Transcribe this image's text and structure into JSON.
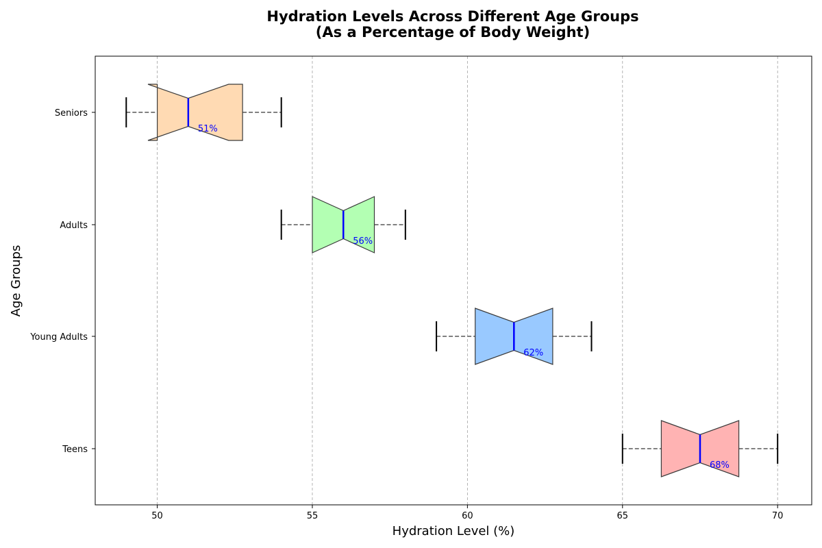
{
  "chart_data": {
    "type": "box",
    "orientation": "horizontal",
    "notched": true,
    "title_lines": [
      "Hydration Levels Across Different Age Groups",
      "(As a Percentage of Body Weight)"
    ],
    "xlabel": "Hydration Level (%)",
    "ylabel": "Age Groups",
    "xlim": [
      48,
      71.1
    ],
    "xticks": [
      50,
      55,
      60,
      65,
      70
    ],
    "xtick_labels": [
      "50",
      "55",
      "60",
      "65",
      "70"
    ],
    "grid": "x-dashed",
    "categories": [
      "Teens",
      "Young Adults",
      "Adults",
      "Seniors"
    ],
    "boxes": [
      {
        "name": "Teens",
        "min": 65,
        "q1": 66.25,
        "median": 67.5,
        "q3": 68.75,
        "max": 70,
        "notch_low": 66.25,
        "notch_high": 68.75,
        "color": "#ffb3b3",
        "label": "68%"
      },
      {
        "name": "Young Adults",
        "min": 59,
        "q1": 60.25,
        "median": 61.5,
        "q3": 62.75,
        "max": 64,
        "notch_low": 60.25,
        "notch_high": 62.75,
        "color": "#99c9ff",
        "label": "62%"
      },
      {
        "name": "Adults",
        "min": 54,
        "q1": 55.0,
        "median": 56.0,
        "q3": 57.0,
        "max": 58,
        "notch_low": 55.0,
        "notch_high": 57.0,
        "color": "#b3ffb3",
        "label": "56%"
      },
      {
        "name": "Seniors",
        "min": 49,
        "q1": 50.0,
        "median": 51.0,
        "q3": 52.75,
        "max": 54,
        "notch_low": 49.7,
        "notch_high": 52.3,
        "color": "#ffdab3",
        "label": "51%"
      }
    ],
    "median_color": "#0000ff",
    "whisker_color": "#808080",
    "cap_color": "#000000"
  }
}
